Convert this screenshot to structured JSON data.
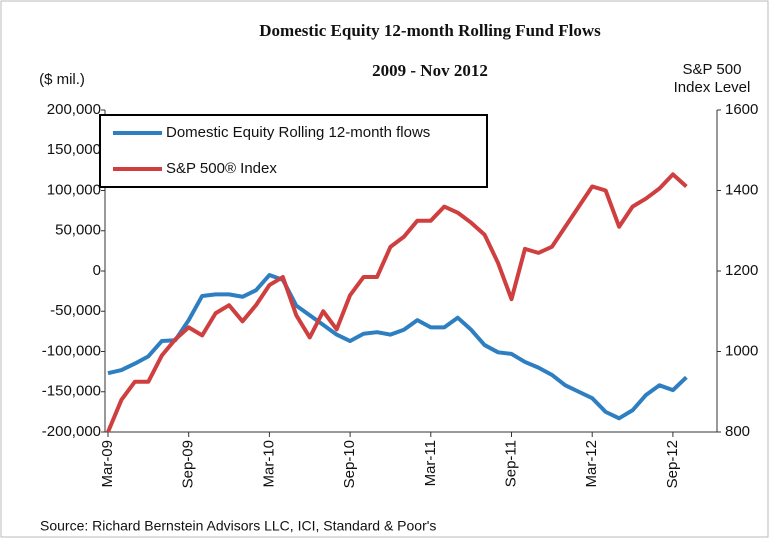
{
  "chart_data": {
    "type": "line",
    "title": "Domestic Equity 12-month Rolling Fund Flows",
    "subtitle": "2009 - Nov 2012",
    "y_label": "($ mil.)",
    "y2_label": "S&P 500 Index Level",
    "source": "Source: Richard Bernstein Advisors LLC, ICI, Standard & Poor's",
    "categories": [
      "Mar-09",
      null,
      null,
      null,
      null,
      null,
      "Sep-09",
      null,
      null,
      null,
      null,
      null,
      "Mar-10",
      null,
      null,
      null,
      null,
      null,
      "Sep-10",
      null,
      null,
      null,
      null,
      null,
      "Mar-11",
      null,
      null,
      null,
      null,
      null,
      "Sep-11",
      null,
      null,
      null,
      null,
      null,
      "Mar-12",
      null,
      null,
      null,
      null,
      null,
      "Sep-12",
      null
    ],
    "series": [
      {
        "name": "Domestic Equity Rolling 12-month flows",
        "color": "#2e7fc2",
        "values": [
          -127000,
          -123000,
          -115000,
          -106000,
          -87000,
          -86000,
          -61000,
          -31000,
          -29000,
          -29000,
          -32000,
          -24000,
          -5000,
          -11000,
          -43000,
          -55000,
          -67000,
          -79000,
          -87000,
          -78000,
          -76000,
          -79000,
          -73000,
          -61000,
          -70000,
          -70000,
          -58000,
          -73000,
          -92000,
          -101000,
          -103000,
          -113000,
          -120000,
          -129000,
          -142000,
          -150000,
          -158000,
          -175000,
          -183000,
          -173000,
          -154000,
          -142000,
          -148000,
          -132000
        ]
      },
      {
        "name": "S&P 500® Index",
        "color": "#cf3f3f",
        "axis": "y2",
        "values": [
          800,
          880,
          925,
          925,
          990,
          1030,
          1060,
          1040,
          1095,
          1115,
          1075,
          1115,
          1165,
          1185,
          1090,
          1035,
          1100,
          1055,
          1140,
          1185,
          1185,
          1260,
          1285,
          1325,
          1325,
          1360,
          1345,
          1320,
          1290,
          1220,
          1130,
          1255,
          1245,
          1260,
          1310,
          1360,
          1410,
          1400,
          1310,
          1360,
          1380,
          1405,
          1440,
          1410
        ]
      }
    ],
    "ylim": [
      -200000,
      200000
    ],
    "yticks": [
      {
        "value": -200000,
        "label": "-200,000"
      },
      {
        "value": -150000,
        "label": "-150,000"
      },
      {
        "value": -100000,
        "label": "-100,000"
      },
      {
        "value": -50000,
        "label": "-50,000"
      },
      0,
      {
        "value": 50000,
        "label": "50,000"
      },
      {
        "value": 100000,
        "label": "100,000"
      },
      {
        "value": 150000,
        "label": "150,000"
      },
      {
        "value": 200000,
        "label": "200,000"
      }
    ],
    "y2lim": [
      800,
      1600
    ],
    "y2ticks": [
      800,
      1000,
      1200,
      1400,
      1600
    ],
    "legend": "upper left"
  }
}
